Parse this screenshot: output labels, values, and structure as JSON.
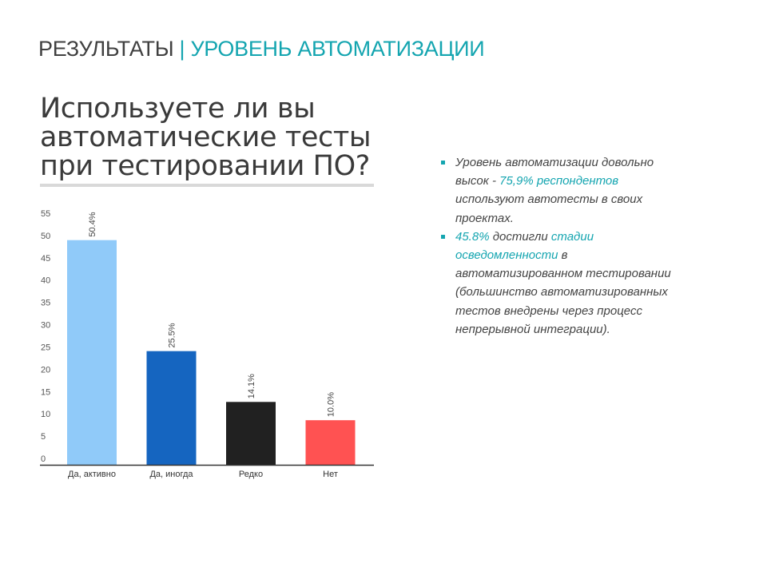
{
  "slide": {
    "title_main": "РЕЗУЛЬТАТЫ",
    "title_sep": "|",
    "title_accent": "УРОВЕНЬ АВТОМАТИЗАЦИИ"
  },
  "chart_heading": {
    "lines": [
      "Используете ли вы",
      "автоматические тесты",
      "при тестировании ПО?"
    ]
  },
  "chart_data": {
    "type": "bar",
    "title": "Используете ли вы автоматические тесты при тестировании ПО?",
    "categories": [
      "Да, активно",
      "Да, иногда",
      "Редко",
      "Нет"
    ],
    "values": [
      50.4,
      25.5,
      14.1,
      10.0
    ],
    "value_labels": [
      "50.4%",
      "25.5%",
      "14.1%",
      "10.0%"
    ],
    "colors": [
      "#90caf9",
      "#1565c0",
      "#212121",
      "#ff5252"
    ],
    "ylim": [
      0,
      55
    ],
    "yticks": [
      "0",
      "5",
      "10",
      "15",
      "20",
      "25",
      "30",
      "35",
      "40",
      "45",
      "50",
      "55"
    ],
    "grid": false,
    "xlabel": "",
    "ylabel": ""
  },
  "bullets": [
    {
      "parts": [
        {
          "text": "Уровень автоматизации довольно высок - ",
          "hl": false
        },
        {
          "text": "75,9% респондентов",
          "hl": true
        },
        {
          "text": " используют автотесты в своих проектах.",
          "hl": false
        }
      ]
    },
    {
      "parts": [
        {
          "text": "45.8%",
          "hl": true
        },
        {
          "text": " достигли ",
          "hl": false
        },
        {
          "text": "стадии осведомленности",
          "hl": true
        },
        {
          "text": " в автоматизированном тестировании (большинство автоматизированных тестов внедрены через процесс непрерывной интеграции).",
          "hl": false
        }
      ]
    }
  ],
  "colors": {
    "accent": "#14a5b0",
    "title_text": "#404040",
    "body_text": "#444444"
  }
}
